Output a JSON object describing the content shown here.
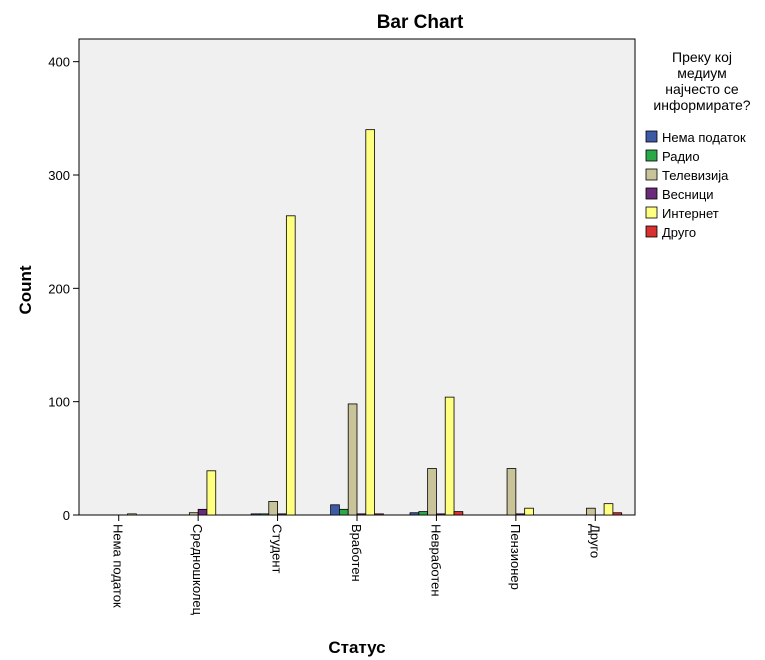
{
  "chart_data": {
    "type": "bar",
    "title": "Bar Chart",
    "xlabel": "Статус",
    "ylabel": "Count",
    "ylim": [
      0,
      420
    ],
    "yticks": [
      0,
      100,
      200,
      300,
      400
    ],
    "grid": false,
    "legend_position": "right",
    "legend_title": [
      "Преку кој",
      "медиум",
      "најчесто се",
      "информирате?"
    ],
    "categories": [
      "Нема податок",
      "Средношколец",
      "Студент",
      "Вработен",
      "Невработен",
      "Пензионер",
      "Друго"
    ],
    "series": [
      {
        "name": "Нема податок",
        "color": "#3c5aa6",
        "values": [
          0,
          0,
          1,
          9,
          2,
          0,
          0
        ]
      },
      {
        "name": "Радио",
        "color": "#2ba84a",
        "values": [
          0,
          0,
          1,
          5,
          3,
          0,
          0
        ]
      },
      {
        "name": "Телевизија",
        "color": "#c9c39a",
        "values": [
          0,
          2,
          12,
          98,
          41,
          41,
          6
        ]
      },
      {
        "name": "Весници",
        "color": "#6b2a7a",
        "values": [
          0,
          5,
          1,
          1,
          1,
          1,
          0
        ]
      },
      {
        "name": "Интернет",
        "color": "#ffff80",
        "values": [
          1,
          39,
          264,
          340,
          104,
          6,
          10
        ]
      },
      {
        "name": "Друго",
        "color": "#d93030",
        "values": [
          0,
          0,
          0,
          1,
          3,
          0,
          2
        ]
      }
    ]
  }
}
